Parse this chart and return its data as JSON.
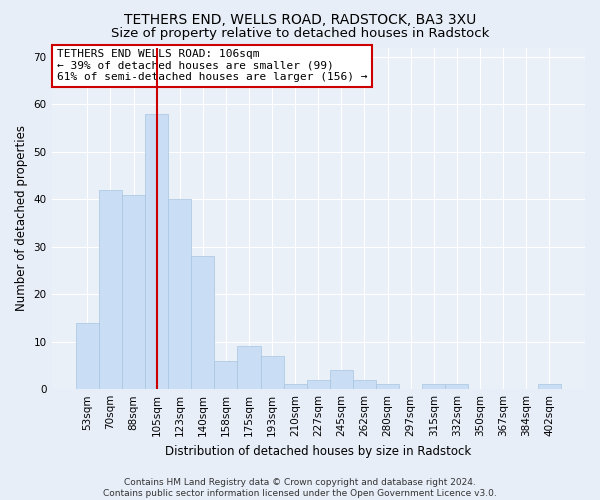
{
  "title": "TETHERS END, WELLS ROAD, RADSTOCK, BA3 3XU",
  "subtitle": "Size of property relative to detached houses in Radstock",
  "xlabel": "Distribution of detached houses by size in Radstock",
  "ylabel": "Number of detached properties",
  "categories": [
    "53sqm",
    "70sqm",
    "88sqm",
    "105sqm",
    "123sqm",
    "140sqm",
    "158sqm",
    "175sqm",
    "193sqm",
    "210sqm",
    "227sqm",
    "245sqm",
    "262sqm",
    "280sqm",
    "297sqm",
    "315sqm",
    "332sqm",
    "350sqm",
    "367sqm",
    "384sqm",
    "402sqm"
  ],
  "values": [
    14,
    42,
    41,
    58,
    40,
    28,
    6,
    9,
    7,
    1,
    2,
    4,
    2,
    1,
    0,
    1,
    1,
    0,
    0,
    0,
    1
  ],
  "bar_color": "#c9ddf5",
  "bar_edgecolor": "#a8c4e0",
  "vline_x": 3,
  "vline_color": "#cc0000",
  "annotation_text": "TETHERS END WELLS ROAD: 106sqm\n← 39% of detached houses are smaller (99)\n61% of semi-detached houses are larger (156) →",
  "annotation_box_color": "white",
  "annotation_box_edgecolor": "#cc0000",
  "ylim": [
    0,
    72
  ],
  "yticks": [
    0,
    10,
    20,
    30,
    40,
    50,
    60,
    70
  ],
  "footer": "Contains HM Land Registry data © Crown copyright and database right 2024.\nContains public sector information licensed under the Open Government Licence v3.0.",
  "bg_color": "#e8eef8",
  "plot_bg_color": "#eaf0f8",
  "grid_color": "#ffffff",
  "title_fontsize": 10,
  "subtitle_fontsize": 9.5,
  "tick_fontsize": 7.5,
  "label_fontsize": 8.5,
  "footer_fontsize": 6.5,
  "annotation_fontsize": 8
}
